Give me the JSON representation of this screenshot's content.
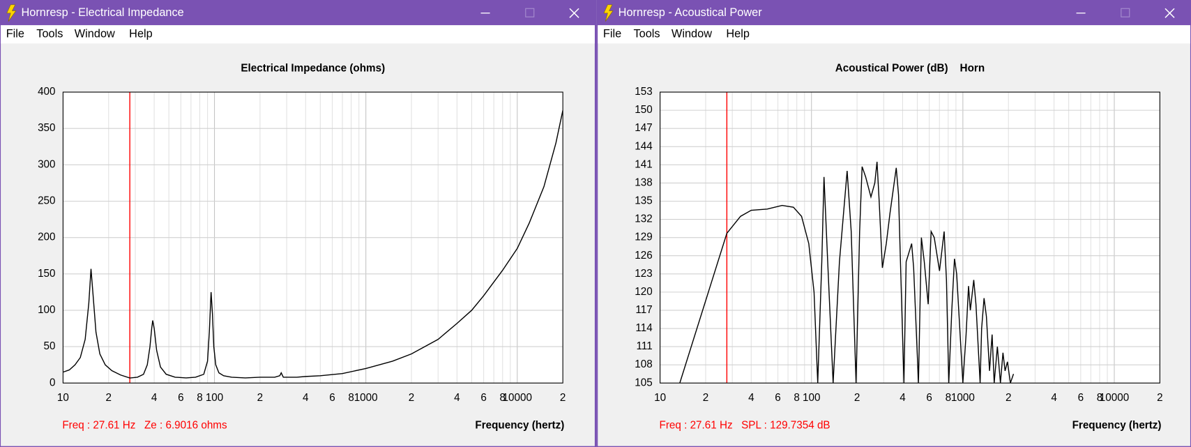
{
  "windows": [
    {
      "title": "Hornresp - Electrical Impedance",
      "menu": [
        "File",
        "Tools",
        "Window",
        "Help"
      ],
      "status": [
        "Freq : 27.61 Hz",
        "Ze : 6.9016 ohms"
      ],
      "chart_data": {
        "type": "line",
        "title": "Electrical Impedance (ohms)",
        "x_label": "Frequency (hertz)",
        "x": [
          10,
          11,
          12,
          13,
          14,
          14.8,
          15.3,
          15.8,
          16.5,
          17.5,
          19,
          21,
          24,
          27.61,
          31,
          34,
          36,
          37.5,
          38.5,
          39.1,
          40,
          41.5,
          44,
          48,
          55,
          65,
          75,
          85,
          90,
          92.5,
          95,
          97,
          99,
          102,
          107,
          115,
          130,
          160,
          200,
          250,
          270,
          276,
          285,
          350,
          400,
          500,
          700,
          1000,
          1500,
          2000,
          3000,
          4000,
          5000,
          6000,
          8000,
          10000,
          12000,
          15000,
          18000,
          20000
        ],
        "values": [
          15,
          18,
          25,
          35,
          60,
          110,
          157,
          120,
          70,
          40,
          25,
          17,
          11,
          6.9,
          8,
          12,
          25,
          50,
          75,
          86,
          75,
          45,
          22,
          12,
          8,
          7,
          8,
          12,
          30,
          70,
          125,
          95,
          50,
          25,
          14,
          10,
          8,
          7,
          8,
          8,
          10,
          14,
          8,
          8,
          9,
          10,
          13,
          20,
          30,
          40,
          60,
          82,
          100,
          120,
          155,
          185,
          220,
          270,
          330,
          375
        ],
        "color": "#000000",
        "log_x": true,
        "grid": true,
        "xlim": [
          10,
          20000
        ],
        "ylim": [
          0,
          400
        ],
        "xticks": [
          10,
          {
            "value": 20,
            "label": "2"
          },
          {
            "value": 40,
            "label": "4"
          },
          {
            "value": 60,
            "label": "6"
          },
          {
            "value": 80,
            "label": "8"
          },
          100,
          {
            "value": 200,
            "label": "2"
          },
          {
            "value": 400,
            "label": "4"
          },
          {
            "value": 600,
            "label": "6"
          },
          {
            "value": 800,
            "label": "8"
          },
          1000,
          {
            "value": 2000,
            "label": "2"
          },
          {
            "value": 4000,
            "label": "4"
          },
          {
            "value": 6000,
            "label": "6"
          },
          {
            "value": 8000,
            "label": "8"
          },
          10000,
          {
            "value": 20000,
            "label": "2"
          }
        ],
        "xminor": [
          30,
          50,
          70,
          90,
          300,
          500,
          700,
          900,
          3000,
          5000,
          7000,
          9000
        ],
        "yticks": [
          0,
          50,
          100,
          150,
          200,
          250,
          300,
          350,
          400
        ],
        "cursor": {
          "x": 27.61,
          "color": "#ff0000"
        }
      }
    },
    {
      "title": "Hornresp - Acoustical Power",
      "menu": [
        "File",
        "Tools",
        "Window",
        "Help"
      ],
      "status": [
        "Freq : 27.61 Hz",
        "SPL : 129.7354 dB"
      ],
      "chart_data": {
        "type": "line",
        "title": "Acoustical Power (dB)    Horn",
        "x_label": "Frequency (hertz)",
        "x": [
          13.5,
          27.61,
          34,
          40,
          51,
          64,
          76,
          86,
          96,
          104,
          110,
          117,
          121,
          128,
          139,
          153,
          172,
          183,
          197,
          208,
          216,
          228,
          247,
          262,
          271,
          280,
          294,
          312,
          330,
          363,
          376,
          408,
          422,
          459,
          473,
          509,
          532,
          556,
          590,
          617,
          647,
          701,
          752,
          779,
          807,
          845,
          880,
          910,
          964,
          1000,
          1050,
          1090,
          1120,
          1180,
          1220,
          1300,
          1330,
          1380,
          1430,
          1500,
          1560,
          1610,
          1690,
          1770,
          1840,
          1900,
          1970,
          2060,
          2160
        ],
        "values": [
          105,
          129.7,
          132.5,
          133.5,
          133.7,
          134.3,
          134,
          132.5,
          128,
          120,
          105,
          125,
          139,
          125,
          105,
          125,
          140,
          130,
          105,
          130,
          140.7,
          139,
          135.7,
          138,
          141.5,
          135,
          124,
          128,
          133,
          140.5,
          136,
          105,
          125,
          128,
          124,
          105,
          129,
          125,
          118,
          130,
          129,
          123.5,
          130,
          122,
          105,
          117,
          125.5,
          123,
          112,
          105,
          113,
          121,
          117,
          122,
          118,
          105,
          114,
          119,
          116,
          107,
          113,
          105,
          111,
          105,
          110,
          107,
          108.5,
          105,
          106.5
        ],
        "color": "#000000",
        "log_x": true,
        "grid": true,
        "xlim": [
          10,
          20000
        ],
        "ylim": [
          105,
          153
        ],
        "xticks": [
          10,
          {
            "value": 20,
            "label": "2"
          },
          {
            "value": 40,
            "label": "4"
          },
          {
            "value": 60,
            "label": "6"
          },
          {
            "value": 80,
            "label": "8"
          },
          100,
          {
            "value": 200,
            "label": "2"
          },
          {
            "value": 400,
            "label": "4"
          },
          {
            "value": 600,
            "label": "6"
          },
          {
            "value": 800,
            "label": "8"
          },
          1000,
          {
            "value": 2000,
            "label": "2"
          },
          {
            "value": 4000,
            "label": "4"
          },
          {
            "value": 6000,
            "label": "6"
          },
          {
            "value": 8000,
            "label": "8"
          },
          10000,
          {
            "value": 20000,
            "label": "2"
          }
        ],
        "xminor": [
          30,
          50,
          70,
          90,
          300,
          500,
          700,
          900,
          3000,
          5000,
          7000,
          9000
        ],
        "yticks": [
          105,
          108,
          111,
          114,
          117,
          120,
          123,
          126,
          129,
          132,
          135,
          138,
          141,
          144,
          147,
          150,
          153
        ],
        "cursor": {
          "x": 27.61,
          "color": "#ff0000"
        }
      }
    }
  ]
}
